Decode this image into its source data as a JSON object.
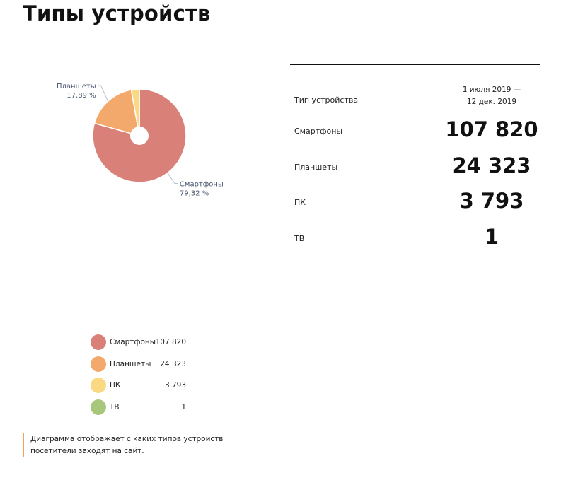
{
  "page": {
    "title": "Типы устройств"
  },
  "colors": {
    "smartphones": "#d98178",
    "tablets": "#f3a96b",
    "pc": "#fbd882",
    "tv": "#a8c77c",
    "pie_label": "#4a5670",
    "caption_accent": "#f0a060"
  },
  "chart_data": {
    "type": "pie",
    "style": "donut-with-small-hole",
    "slices": [
      {
        "name": "Смартфоны",
        "value": 107820,
        "percent_label": "79,32 %",
        "color": "#d98178"
      },
      {
        "name": "Планшеты",
        "value": 24323,
        "percent_label": "17,89 %",
        "color": "#f3a96b"
      },
      {
        "name": "ПК",
        "value": 3793,
        "color": "#fbd882"
      },
      {
        "name": "ТВ",
        "value": 1,
        "color": "#a8c77c"
      }
    ]
  },
  "table": {
    "col_device": "Тип устройства",
    "period_line1": "1 июля 2019 —",
    "period_line2": "12 дек. 2019",
    "rows": [
      {
        "label": "Смартфоны",
        "value": "107 820"
      },
      {
        "label": "Планшеты",
        "value": "24 323"
      },
      {
        "label": "ПК",
        "value": "3 793"
      },
      {
        "label": "ТВ",
        "value": "1"
      }
    ]
  },
  "legend": [
    {
      "label": "Смартфоны",
      "value": "107 820",
      "color": "#d98178"
    },
    {
      "label": "Планшеты",
      "value": "24 323",
      "color": "#f3a96b"
    },
    {
      "label": "ПК",
      "value": "3 793",
      "color": "#fbd882"
    },
    {
      "label": "ТВ",
      "value": "1",
      "color": "#a8c77c"
    }
  ],
  "caption": "Диаграмма отображает с каких типов устройств посетители заходят на сайт."
}
